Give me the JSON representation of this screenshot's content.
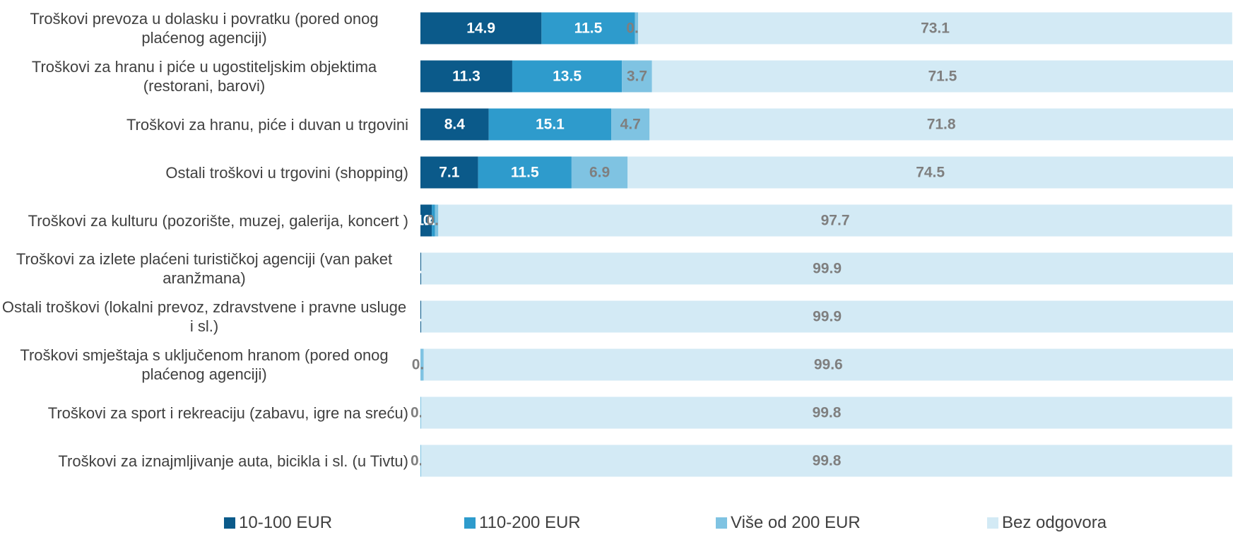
{
  "chart_data": {
    "type": "stacked-bar-horizontal",
    "categories": [
      "Troškovi prevoza u dolasku i povratku (pored onog plaćenog agenciji)",
      "Troškovi za hranu i piće u ugostiteljskim objektima (restorani, barovi)",
      "Troškovi za hranu, piće i duvan u trgovini",
      "Ostali troškovi u trgovini (shopping)",
      "Troškovi za kulturu (pozorište, muzej, galerija, koncert )",
      "Troškovi za izlete plaćeni turističkoj agenciji (van paket aranžmana)",
      "Ostali troškovi (lokalni prevoz, zdravstvene i pravne usluge i sl.)",
      "Troškovi smještaja s uključenom hranom (pored onog plaćenog agenciji)",
      "Troškovi za sport i rekreaciju (zabavu, igre na sreću)",
      "Troškovi za iznajmljivanje auta, bicikla i sl. (u Tivtu)"
    ],
    "series": [
      {
        "name": "10-100 EUR",
        "color": "#0b5a8a",
        "values": [
          14.9,
          11.3,
          8.4,
          7.1,
          1.4,
          0.1,
          0.1,
          null,
          null,
          null
        ]
      },
      {
        "name": "110-200 EUR",
        "color": "#2e9bcc",
        "values": [
          11.5,
          13.5,
          15.1,
          11.5,
          0.4,
          null,
          null,
          null,
          null,
          null
        ]
      },
      {
        "name": "Više od 200 EUR",
        "color": "#7fc3e2",
        "values": [
          0.4,
          3.7,
          4.7,
          6.9,
          0.4,
          null,
          null,
          0.4,
          0.1,
          0.1
        ]
      },
      {
        "name": "Bez odgovora",
        "color": "#d3eaf5",
        "values": [
          73.1,
          71.5,
          71.8,
          74.5,
          97.7,
          99.9,
          99.9,
          99.6,
          99.8,
          99.8
        ]
      }
    ],
    "xlim": [
      0,
      100
    ]
  }
}
